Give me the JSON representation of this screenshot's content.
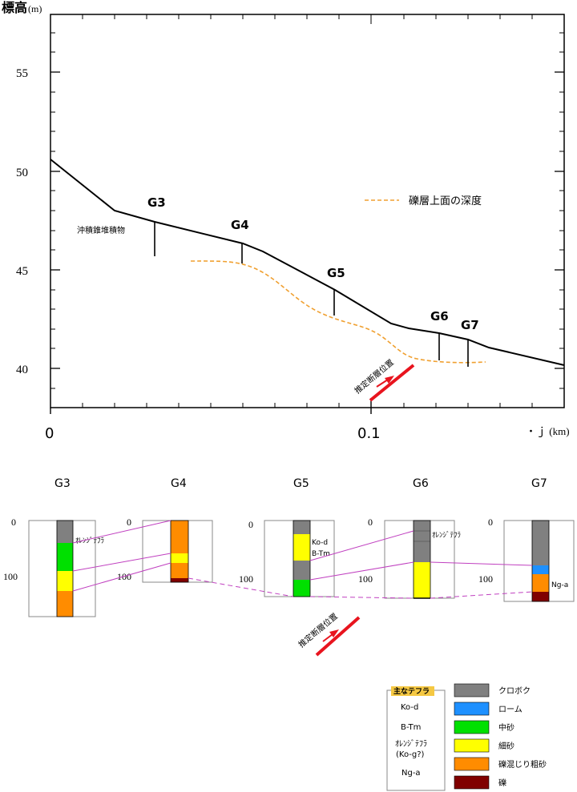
{
  "profile": {
    "y_axis_label": "標高",
    "y_axis_unit": "(m)",
    "y_ticks": [
      "55",
      "50",
      "45",
      "40"
    ],
    "x_ticks": [
      "0",
      "0.1"
    ],
    "x_axis_label": "・ｊ (km)",
    "legend_label": "礫層上面の深度",
    "deposit_label": "沖積錐堆積物",
    "fault_label": "推定断層位置",
    "boreholes": [
      {
        "id": "G3"
      },
      {
        "id": "G4"
      },
      {
        "id": "G5"
      },
      {
        "id": "G6"
      },
      {
        "id": "G7"
      }
    ]
  },
  "columns": {
    "titles": [
      "G3",
      "G4",
      "G5",
      "G6",
      "G7"
    ],
    "depth_labels": [
      "0",
      "100"
    ],
    "notes": {
      "g3": "ｵﾚﾝｼﾞﾃﾌﾗ",
      "g5_a": "Ko-d",
      "g5_b": "B-Tm",
      "g6": "ｵﾚﾝｼﾞﾃﾌﾗ",
      "g7": "Ng-a"
    },
    "fault_label": "推定断層位置"
  },
  "tephra_legend": {
    "title": "主なテフラ",
    "items": [
      "Ko-d",
      "B-Tm",
      "ｵﾚﾝｼﾞﾃﾌﾗ",
      "(Ko-g?)",
      "Ng-a"
    ]
  },
  "facies_legend": {
    "items": [
      {
        "label": "クロボク",
        "color": "#808080"
      },
      {
        "label": "ローム",
        "color": "#1e90ff"
      },
      {
        "label": "中砂",
        "color": "#00e000"
      },
      {
        "label": "細砂",
        "color": "#ffff00"
      },
      {
        "label": "礫混じり粗砂",
        "color": "#ff8c00"
      },
      {
        "label": "礫",
        "color": "#800000"
      }
    ]
  },
  "colors": {
    "gravel_line": "#f0a030",
    "fault_arrow": "#e8141e",
    "correlation": "#c040c0"
  }
}
